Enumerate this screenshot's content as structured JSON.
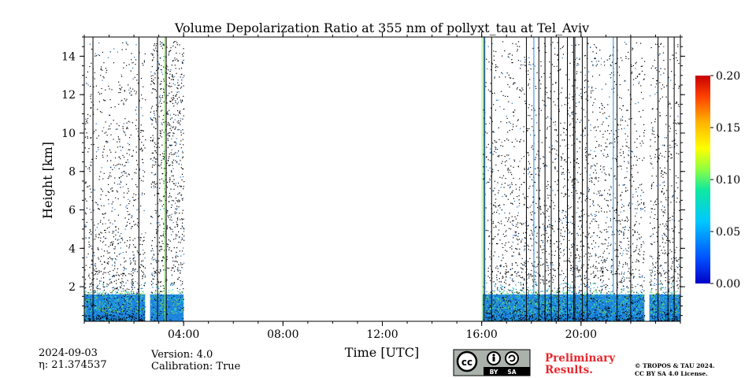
{
  "chart_data": {
    "type": "heatmap",
    "title": "Volume Depolarization Ratio at 355 nm of pollyxt_tau at Tel_Aviv",
    "xlabel": "Time [UTC]",
    "ylabel": "Height [km]",
    "xlim_hours": [
      0,
      24
    ],
    "ylim_km": [
      0.2,
      15
    ],
    "x_ticks": [
      {
        "h": 4,
        "label": "04:00"
      },
      {
        "h": 8,
        "label": "08:00"
      },
      {
        "h": 12,
        "label": "12:00"
      },
      {
        "h": 16,
        "label": "16:00"
      },
      {
        "h": 20,
        "label": "20:00"
      }
    ],
    "y_ticks": [
      {
        "v": 2,
        "label": "2"
      },
      {
        "v": 4,
        "label": "4"
      },
      {
        "v": 6,
        "label": "6"
      },
      {
        "v": 8,
        "label": "8"
      },
      {
        "v": 10,
        "label": "10"
      },
      {
        "v": 12,
        "label": "12"
      },
      {
        "v": 14,
        "label": "14"
      }
    ],
    "colorbar": {
      "colormap": "jet",
      "min": 0.0,
      "max": 0.2,
      "ticks": [
        {
          "v": 0.0,
          "label": "0.00"
        },
        {
          "v": 0.05,
          "label": "0.05"
        },
        {
          "v": 0.1,
          "label": "0.10"
        },
        {
          "v": 0.15,
          "label": "0.15"
        },
        {
          "v": 0.2,
          "label": "0.20"
        }
      ]
    },
    "data_segments_hours": [
      [
        0.0,
        2.45
      ],
      [
        2.65,
        4.0
      ],
      [
        16.05,
        22.55
      ],
      [
        22.75,
        24.0
      ]
    ],
    "no_data_segments_hours": [
      [
        2.45,
        2.65
      ],
      [
        4.0,
        16.05
      ],
      [
        22.55,
        22.75
      ]
    ],
    "boundary_layer_top_km": 1.6,
    "profile_lines_hours": [
      0.35,
      2.2,
      2.95,
      3.3,
      16.1,
      16.4,
      17.8,
      18.3,
      18.55,
      18.8,
      19.1,
      19.45,
      19.7,
      19.75,
      20.05,
      20.25,
      21.45,
      22.0,
      23.1,
      23.5,
      23.75
    ]
  },
  "footer": {
    "date": "2024-09-03",
    "eta": "η: 21.374537",
    "version": "Version: 4.0",
    "calibration": "Calibration: True",
    "license_badge_text": [
      "BY",
      "SA"
    ],
    "preliminary": [
      "Preliminary",
      "Results."
    ],
    "copyright": [
      "© TROPOS & TAU 2024.",
      "CC BY SA 4.0 License."
    ]
  }
}
